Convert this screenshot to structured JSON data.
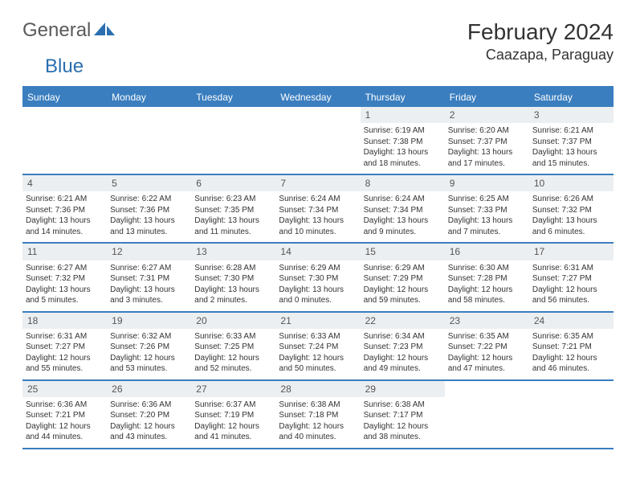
{
  "logo": {
    "part1": "General",
    "part2": "Blue"
  },
  "title": "February 2024",
  "location": "Caazapa, Paraguay",
  "colors": {
    "accent": "#3a7ebf",
    "header_bg": "#3a7ebf",
    "header_text": "#ffffff",
    "daybar_bg": "#eceff1",
    "text": "#333333",
    "logo_gray": "#5a5a5a",
    "logo_blue": "#2b6fb0"
  },
  "weekdays": [
    "Sunday",
    "Monday",
    "Tuesday",
    "Wednesday",
    "Thursday",
    "Friday",
    "Saturday"
  ],
  "weeks": [
    [
      {
        "day": "",
        "empty": true
      },
      {
        "day": "",
        "empty": true
      },
      {
        "day": "",
        "empty": true
      },
      {
        "day": "",
        "empty": true
      },
      {
        "day": "1",
        "sunrise": "Sunrise: 6:19 AM",
        "sunset": "Sunset: 7:38 PM",
        "daylight1": "Daylight: 13 hours",
        "daylight2": "and 18 minutes."
      },
      {
        "day": "2",
        "sunrise": "Sunrise: 6:20 AM",
        "sunset": "Sunset: 7:37 PM",
        "daylight1": "Daylight: 13 hours",
        "daylight2": "and 17 minutes."
      },
      {
        "day": "3",
        "sunrise": "Sunrise: 6:21 AM",
        "sunset": "Sunset: 7:37 PM",
        "daylight1": "Daylight: 13 hours",
        "daylight2": "and 15 minutes."
      }
    ],
    [
      {
        "day": "4",
        "sunrise": "Sunrise: 6:21 AM",
        "sunset": "Sunset: 7:36 PM",
        "daylight1": "Daylight: 13 hours",
        "daylight2": "and 14 minutes."
      },
      {
        "day": "5",
        "sunrise": "Sunrise: 6:22 AM",
        "sunset": "Sunset: 7:36 PM",
        "daylight1": "Daylight: 13 hours",
        "daylight2": "and 13 minutes."
      },
      {
        "day": "6",
        "sunrise": "Sunrise: 6:23 AM",
        "sunset": "Sunset: 7:35 PM",
        "daylight1": "Daylight: 13 hours",
        "daylight2": "and 11 minutes."
      },
      {
        "day": "7",
        "sunrise": "Sunrise: 6:24 AM",
        "sunset": "Sunset: 7:34 PM",
        "daylight1": "Daylight: 13 hours",
        "daylight2": "and 10 minutes."
      },
      {
        "day": "8",
        "sunrise": "Sunrise: 6:24 AM",
        "sunset": "Sunset: 7:34 PM",
        "daylight1": "Daylight: 13 hours",
        "daylight2": "and 9 minutes."
      },
      {
        "day": "9",
        "sunrise": "Sunrise: 6:25 AM",
        "sunset": "Sunset: 7:33 PM",
        "daylight1": "Daylight: 13 hours",
        "daylight2": "and 7 minutes."
      },
      {
        "day": "10",
        "sunrise": "Sunrise: 6:26 AM",
        "sunset": "Sunset: 7:32 PM",
        "daylight1": "Daylight: 13 hours",
        "daylight2": "and 6 minutes."
      }
    ],
    [
      {
        "day": "11",
        "sunrise": "Sunrise: 6:27 AM",
        "sunset": "Sunset: 7:32 PM",
        "daylight1": "Daylight: 13 hours",
        "daylight2": "and 5 minutes."
      },
      {
        "day": "12",
        "sunrise": "Sunrise: 6:27 AM",
        "sunset": "Sunset: 7:31 PM",
        "daylight1": "Daylight: 13 hours",
        "daylight2": "and 3 minutes."
      },
      {
        "day": "13",
        "sunrise": "Sunrise: 6:28 AM",
        "sunset": "Sunset: 7:30 PM",
        "daylight1": "Daylight: 13 hours",
        "daylight2": "and 2 minutes."
      },
      {
        "day": "14",
        "sunrise": "Sunrise: 6:29 AM",
        "sunset": "Sunset: 7:30 PM",
        "daylight1": "Daylight: 13 hours",
        "daylight2": "and 0 minutes."
      },
      {
        "day": "15",
        "sunrise": "Sunrise: 6:29 AM",
        "sunset": "Sunset: 7:29 PM",
        "daylight1": "Daylight: 12 hours",
        "daylight2": "and 59 minutes."
      },
      {
        "day": "16",
        "sunrise": "Sunrise: 6:30 AM",
        "sunset": "Sunset: 7:28 PM",
        "daylight1": "Daylight: 12 hours",
        "daylight2": "and 58 minutes."
      },
      {
        "day": "17",
        "sunrise": "Sunrise: 6:31 AM",
        "sunset": "Sunset: 7:27 PM",
        "daylight1": "Daylight: 12 hours",
        "daylight2": "and 56 minutes."
      }
    ],
    [
      {
        "day": "18",
        "sunrise": "Sunrise: 6:31 AM",
        "sunset": "Sunset: 7:27 PM",
        "daylight1": "Daylight: 12 hours",
        "daylight2": "and 55 minutes."
      },
      {
        "day": "19",
        "sunrise": "Sunrise: 6:32 AM",
        "sunset": "Sunset: 7:26 PM",
        "daylight1": "Daylight: 12 hours",
        "daylight2": "and 53 minutes."
      },
      {
        "day": "20",
        "sunrise": "Sunrise: 6:33 AM",
        "sunset": "Sunset: 7:25 PM",
        "daylight1": "Daylight: 12 hours",
        "daylight2": "and 52 minutes."
      },
      {
        "day": "21",
        "sunrise": "Sunrise: 6:33 AM",
        "sunset": "Sunset: 7:24 PM",
        "daylight1": "Daylight: 12 hours",
        "daylight2": "and 50 minutes."
      },
      {
        "day": "22",
        "sunrise": "Sunrise: 6:34 AM",
        "sunset": "Sunset: 7:23 PM",
        "daylight1": "Daylight: 12 hours",
        "daylight2": "and 49 minutes."
      },
      {
        "day": "23",
        "sunrise": "Sunrise: 6:35 AM",
        "sunset": "Sunset: 7:22 PM",
        "daylight1": "Daylight: 12 hours",
        "daylight2": "and 47 minutes."
      },
      {
        "day": "24",
        "sunrise": "Sunrise: 6:35 AM",
        "sunset": "Sunset: 7:21 PM",
        "daylight1": "Daylight: 12 hours",
        "daylight2": "and 46 minutes."
      }
    ],
    [
      {
        "day": "25",
        "sunrise": "Sunrise: 6:36 AM",
        "sunset": "Sunset: 7:21 PM",
        "daylight1": "Daylight: 12 hours",
        "daylight2": "and 44 minutes."
      },
      {
        "day": "26",
        "sunrise": "Sunrise: 6:36 AM",
        "sunset": "Sunset: 7:20 PM",
        "daylight1": "Daylight: 12 hours",
        "daylight2": "and 43 minutes."
      },
      {
        "day": "27",
        "sunrise": "Sunrise: 6:37 AM",
        "sunset": "Sunset: 7:19 PM",
        "daylight1": "Daylight: 12 hours",
        "daylight2": "and 41 minutes."
      },
      {
        "day": "28",
        "sunrise": "Sunrise: 6:38 AM",
        "sunset": "Sunset: 7:18 PM",
        "daylight1": "Daylight: 12 hours",
        "daylight2": "and 40 minutes."
      },
      {
        "day": "29",
        "sunrise": "Sunrise: 6:38 AM",
        "sunset": "Sunset: 7:17 PM",
        "daylight1": "Daylight: 12 hours",
        "daylight2": "and 38 minutes."
      },
      {
        "day": "",
        "empty": true
      },
      {
        "day": "",
        "empty": true
      }
    ]
  ]
}
